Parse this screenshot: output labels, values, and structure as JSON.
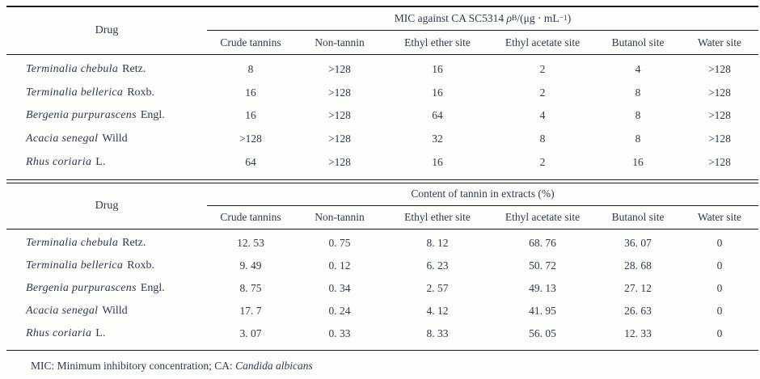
{
  "columns": [
    "Crude tannins",
    "Non-tannin",
    "Ethyl ether site",
    "Ethyl acetate site",
    "Butanol site",
    "Water site"
  ],
  "tables": [
    {
      "drug_header": "Drug",
      "span_header": {
        "prefix": "MIC against CA SC5314 ",
        "rho": "ρ",
        "rho_sub": "B",
        "unit_open": "/(μg · mL",
        "unit_sup": "−1",
        "unit_close": ")"
      },
      "rows": [
        {
          "name": "Terminalia chebula",
          "suffix": "Retz.",
          "values": [
            "8",
            ">128",
            "16",
            "2",
            "4",
            ">128"
          ]
        },
        {
          "name": "Terminalia bellerica",
          "suffix": "Roxb.",
          "values": [
            "16",
            ">128",
            "16",
            "2",
            "8",
            ">128"
          ]
        },
        {
          "name": "Bergenia purpurascens",
          "suffix": "Engl.",
          "values": [
            "16",
            ">128",
            "64",
            "4",
            "8",
            ">128"
          ]
        },
        {
          "name": "Acacia senegal",
          "suffix": "Willd",
          "values": [
            ">128",
            ">128",
            "32",
            "8",
            "8",
            ">128"
          ]
        },
        {
          "name": "Rhus coriaria",
          "suffix": "L.",
          "values": [
            "64",
            ">128",
            "16",
            "2",
            "16",
            ">128"
          ]
        }
      ]
    },
    {
      "drug_header": "Drug",
      "span_header": {
        "title": "Content of tannin in extracts (%)"
      },
      "rows": [
        {
          "name": "Terminalia chebula",
          "suffix": "Retz.",
          "values": [
            "12. 53",
            "0. 75",
            "8. 12",
            "68. 76",
            "36. 07",
            "0"
          ]
        },
        {
          "name": "Terminalia bellerica",
          "suffix": "Roxb.",
          "values": [
            "9. 49",
            "0. 12",
            "6. 23",
            "50. 72",
            "28. 68",
            "0"
          ]
        },
        {
          "name": "Bergenia purpurascens",
          "suffix": "Engl.",
          "values": [
            "8. 75",
            "0. 34",
            "2. 57",
            "49. 13",
            "27. 12",
            "0"
          ]
        },
        {
          "name": "Acacia senegal",
          "suffix": "Willd",
          "values": [
            "17. 7",
            "0. 24",
            "4. 12",
            "41. 95",
            "26. 63",
            "0"
          ]
        },
        {
          "name": "Rhus coriaria",
          "suffix": "L.",
          "values": [
            "3. 07",
            "0. 33",
            "8. 33",
            "56. 05",
            "12. 33",
            "0"
          ]
        }
      ]
    }
  ],
  "footnote": {
    "part1": "MIC: Minimum inhibitory concentration; CA: ",
    "italic": "Candida albicans"
  }
}
